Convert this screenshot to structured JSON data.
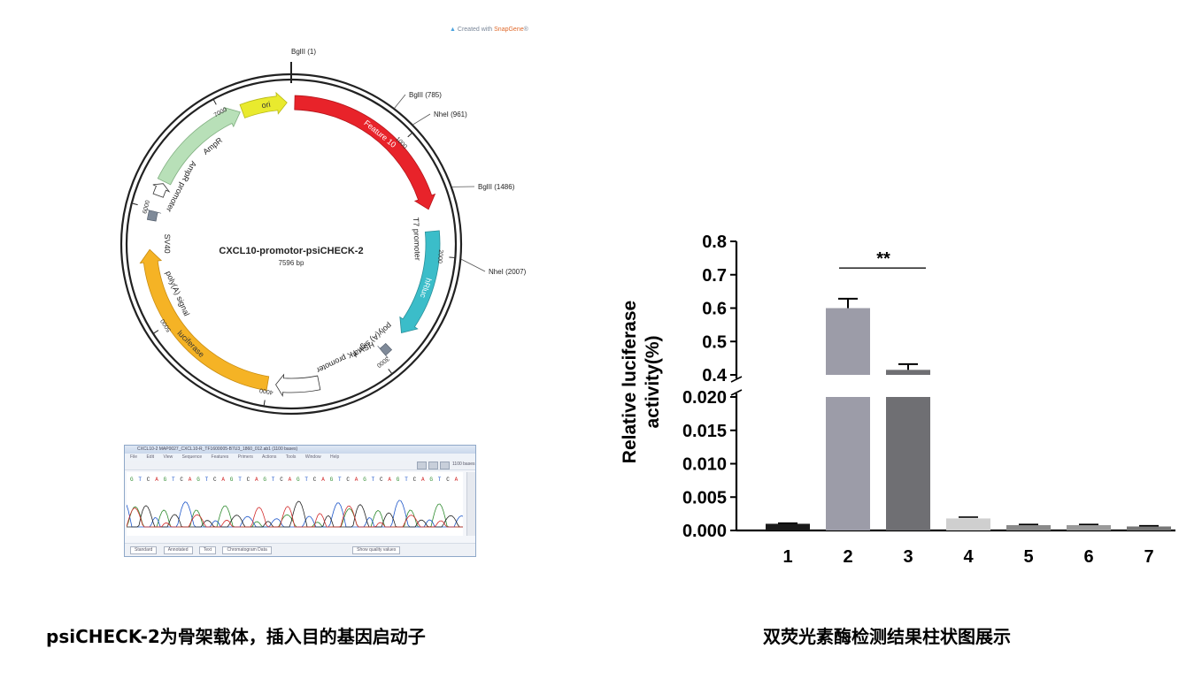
{
  "map": {
    "watermark_prefix": "Created with",
    "watermark_brand": "SnapGene",
    "watermark_mark": "®",
    "title": "CXCL10-promotor-psiCHECK-2",
    "length": "7596 bp",
    "sites": [
      {
        "label": "BglII  (1)"
      },
      {
        "label": "BglII  (785)"
      },
      {
        "label": "NheI  (961)"
      },
      {
        "label": "BglII  (1486)"
      },
      {
        "label": "NheI  (2007)"
      }
    ],
    "ticks": [
      "1000",
      "2000",
      "3000",
      "4000",
      "5000",
      "6000",
      "7000"
    ],
    "features": [
      {
        "label": "Feature 10",
        "color": "#e8232a"
      },
      {
        "label": "T7 promoter"
      },
      {
        "label": "hRluc",
        "color": "#3bbdc9"
      },
      {
        "label": "poly(A) signal"
      },
      {
        "label": "HSV TK promoter"
      },
      {
        "label": "luciferase",
        "color": "#f5b325"
      },
      {
        "label": "poly(A) signal"
      },
      {
        "label": "SV40"
      },
      {
        "label": "AmpR promoter"
      },
      {
        "label": "AmpR",
        "color": "#b8e0b8"
      },
      {
        "label": "ori",
        "color": "#e9ea2e"
      }
    ]
  },
  "chromatogram": {
    "title": "CXCL10-2 MAP0027_CXCL10-R_TF1600005-B7U3_1860_012.ab1  (1100 bases)",
    "menu": [
      "File",
      "Edit",
      "View",
      "Sequence",
      "Features",
      "Primers",
      "Actions",
      "Tools",
      "Window",
      "Help"
    ],
    "bases": "1100 bases",
    "status_buttons": [
      "Standard",
      "Annotated",
      "Text",
      "Chromatogram Data"
    ],
    "quality_label": "Show quality values"
  },
  "chart_data": {
    "type": "bar",
    "categories": [
      "1",
      "2",
      "3",
      "4",
      "5",
      "6",
      "7"
    ],
    "values": [
      0.001,
      0.6,
      0.415,
      0.0018,
      0.0008,
      0.0008,
      0.0006
    ],
    "errors": [
      0.0001,
      0.028,
      0.017,
      0.0002,
      0.0001,
      0.0001,
      0.0001
    ],
    "colors": [
      "#1a1a1a",
      "#9c9ca8",
      "#6f6f73",
      "#cfcfcf",
      "#8a8a8a",
      "#9a9a9a",
      "#777777"
    ],
    "ylabel_line1": "Relative luciferase",
    "ylabel_line2": "activity(%)",
    "axis_break": {
      "lower": [
        0,
        0.02
      ],
      "upper": [
        0.4,
        0.8
      ]
    },
    "ticks_lower": [
      "0.000",
      "0.005",
      "0.010",
      "0.015",
      "0.020"
    ],
    "ticks_upper": [
      "0.4",
      "0.5",
      "0.6",
      "0.7",
      "0.8"
    ],
    "significance": {
      "between": [
        "2",
        "3"
      ],
      "label": "**"
    }
  },
  "captions": {
    "left": "psiCHECK-2为骨架载体，插入目的基因启动子",
    "right": "双荧光素酶检测结果柱状图展示"
  }
}
